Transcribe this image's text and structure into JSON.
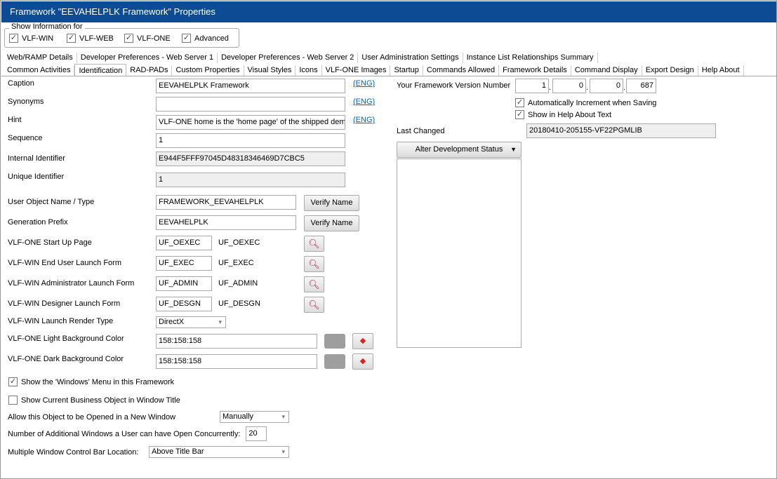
{
  "window": {
    "title": "Framework \"EEVAHELPLK Framework\" Properties"
  },
  "show_info": {
    "legend": "Show Information for",
    "items": [
      {
        "label": "VLF-WIN",
        "checked": true
      },
      {
        "label": "VLF-WEB",
        "checked": true
      },
      {
        "label": "VLF-ONE",
        "checked": true
      },
      {
        "label": "Advanced",
        "checked": true
      }
    ]
  },
  "tabs_row1": [
    "Web/RAMP Details",
    "Developer Preferences - Web Server 1",
    "Developer Preferences - Web Server 2",
    "User Administration Settings",
    "Instance List Relationships Summary"
  ],
  "tabs_row2": [
    "Common Activities",
    "Identification",
    "RAD-PADs",
    "Custom Properties",
    "Visual Styles",
    "Icons",
    "VLF-ONE Images",
    "Startup",
    "Commands Allowed",
    "Framework Details",
    "Command Display",
    "Export Design",
    "Help About"
  ],
  "active_tab": "Identification",
  "left": {
    "caption": {
      "label": "Caption",
      "value": "EEVAHELPLK Framework",
      "lang": "(ENG)"
    },
    "synonyms": {
      "label": "Synonyms",
      "value": "",
      "lang": "(ENG)"
    },
    "hint": {
      "label": "Hint",
      "value": "VLF-ONE home is the 'home page' of the shipped demonstration",
      "lang": "(ENG)"
    },
    "sequence": {
      "label": "Sequence",
      "value": "1"
    },
    "internal_id": {
      "label": "Internal Identifier",
      "value": "E944F5FFF97045D48318346469D7CBC5"
    },
    "unique_id": {
      "label": "Unique Identifier",
      "value": "1"
    },
    "user_object": {
      "label": "User Object Name / Type",
      "value": "FRAMEWORK_EEVAHELPLK",
      "button": "Verify Name"
    },
    "gen_prefix": {
      "label": "Generation Prefix",
      "value": "EEVAHELPLK",
      "button": "Verify Name"
    },
    "forms": [
      {
        "label": "VLF-ONE Start Up Page",
        "value": "UF_OEXEC",
        "resolved": "UF_OEXEC"
      },
      {
        "label": "VLF-WIN End User Launch Form",
        "value": "UF_EXEC",
        "resolved": "UF_EXEC"
      },
      {
        "label": "VLF-WIN Administrator Launch Form",
        "value": "UF_ADMIN",
        "resolved": "UF_ADMIN"
      },
      {
        "label": "VLF-WIN Designer Launch Form",
        "value": "UF_DESGN",
        "resolved": "UF_DESGN"
      }
    ],
    "render_type": {
      "label": "VLF-WIN Launch Render Type",
      "value": "DirectX"
    },
    "light_bg": {
      "label": "VLF-ONE Light Background Color",
      "value": "158:158:158",
      "swatch": "#9e9e9e"
    },
    "dark_bg": {
      "label": "VLF-ONE Dark Background Color",
      "value": "158:158:158",
      "swatch": "#9e9e9e"
    },
    "windows_menu": {
      "label": "Show the 'Windows' Menu in this Framework",
      "checked": true
    },
    "show_bo": {
      "label": "Show Current Business Object in Window Title",
      "checked": false
    },
    "new_window": {
      "label": "Allow this Object to be Opened in a New Window",
      "value": "Manually"
    },
    "additional": {
      "label": "Number of Additional Windows a User can have Open Concurrently:",
      "value": "20"
    },
    "control_bar": {
      "label": "Multiple Window Control Bar Location:",
      "value": "Above Title Bar"
    }
  },
  "right": {
    "version": {
      "label": "Your Framework Version Number",
      "parts": [
        "1",
        "0",
        "0",
        "687"
      ]
    },
    "auto_inc": {
      "label": "Automatically Increment when Saving",
      "checked": true
    },
    "help_about": {
      "label": "Show in Help About Text",
      "checked": true
    },
    "last_changed": {
      "label": "Last Changed",
      "value": "20180410-205155-VF22PGMLIB"
    },
    "alter_status": "Alter Development Status"
  },
  "colors": {
    "title_bar": "#0d4c94",
    "link": "#0563c1"
  }
}
